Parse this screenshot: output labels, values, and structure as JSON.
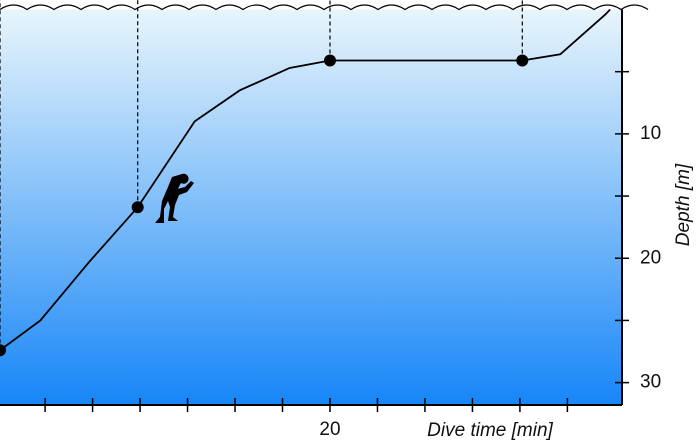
{
  "chart_data": {
    "type": "line",
    "xlabel": "Dive time [min]",
    "ylabel": "Depth [m]",
    "xlim": [
      6.1,
      32.3
    ],
    "xticks": [
      20
    ],
    "xminor_ticks": [
      8,
      10,
      12,
      14,
      16,
      18,
      22,
      24,
      26,
      28,
      30
    ],
    "ylim": [
      0,
      31.8
    ],
    "yticks": [
      10,
      20,
      30
    ],
    "yminor_ticks": [
      5,
      15,
      25
    ],
    "y_inverted": true,
    "y_axis_side": "right",
    "background_gradient": [
      "#e8f5fb",
      "#1786f7"
    ],
    "series": [
      {
        "color": "#000000",
        "x": [
          6.1,
          7.8,
          9.9,
          11.9,
          14.3,
          16.2,
          18.3,
          20,
          28.1,
          29.7,
          31.6,
          31.8
        ],
        "values": [
          27.4,
          25,
          20.2,
          15.9,
          9,
          6.5,
          4.7,
          4.1,
          4.1,
          3.6,
          0.4,
          0
        ]
      },
      {
        "color": "#000000",
        "markers": true,
        "x": [
          6.1,
          11.9,
          20,
          28.1
        ],
        "values": [
          27.4,
          15.9,
          4.1,
          4.1
        ]
      }
    ]
  }
}
